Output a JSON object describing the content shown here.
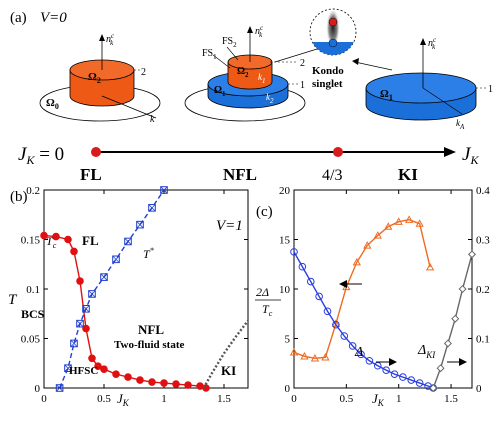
{
  "panel_a": {
    "label": "(a)",
    "v_label": "V=0",
    "nk_label": "n",
    "nk_sub": "k",
    "nk_sup": "c",
    "k_label": "k",
    "kA_label": "k",
    "kA_sub": "A",
    "omega2": "Ω",
    "omega2_sub": "2",
    "omega0": "Ω",
    "omega0_sub": "0",
    "omega1": "Ω",
    "omega1_sub": "1",
    "fs1": "FS",
    "fs1_sub": "1",
    "fs2": "FS",
    "fs2_sub": "2",
    "k1": "k",
    "k1_sub": "1",
    "k2": "k",
    "k2_sub": "2",
    "level1": "1",
    "level2": "2",
    "kondo": "Kondo",
    "singlet": "singlet",
    "jk_start": "J",
    "jk_start_sub": "K",
    "jk_start_eq": " = 0",
    "jk_end": "J",
    "jk_end_sub": "K",
    "phase_fl": "FL",
    "phase_nfl": "NFL",
    "phase_ki": "KI",
    "mid_tick": "4/3",
    "colors": {
      "orange": "#ee5a16",
      "blue": "#1b6fd8",
      "red_dot": "#d81b1b"
    }
  },
  "panel_b": {
    "label": "(b)",
    "v_label": "V=1",
    "region_fl": "FL",
    "region_bcs": "BCS",
    "region_nfl": "NFL",
    "region_twofluid": "Two-fluid state",
    "region_hfsc": "HFSC",
    "region_ki": "KI",
    "tc_label": "T",
    "tc_sub": "c",
    "tstar_label": "T",
    "tstar_sup": "*"
  },
  "panel_c": {
    "label": "(c)",
    "delta_label": "Δ",
    "delta_ki_label": "Δ",
    "delta_ki_sub": "KI",
    "ratio_num": "2Δ",
    "ratio_den": "T",
    "ratio_den_sub": "c"
  },
  "chart_data": [
    {
      "type": "line",
      "panel": "b",
      "xlabel": "J_K",
      "ylabel": "T",
      "xlim": [
        0,
        1.7
      ],
      "ylim": [
        0,
        0.2
      ],
      "xticks": [
        0,
        0.5,
        1,
        1.5
      ],
      "yticks": [
        0,
        0.05,
        0.1,
        0.15,
        0.2
      ],
      "series": [
        {
          "name": "T_c",
          "color": "#e01010",
          "marker": "circle",
          "x": [
            0,
            0.1,
            0.2,
            0.25,
            0.3,
            0.35,
            0.4,
            0.45,
            0.5,
            0.6,
            0.7,
            0.8,
            0.9,
            1.0,
            1.1,
            1.2,
            1.3,
            1.35
          ],
          "y": [
            0.154,
            0.153,
            0.15,
            0.138,
            0.108,
            0.06,
            0.03,
            0.022,
            0.019,
            0.014,
            0.011,
            0.008,
            0.006,
            0.005,
            0.004,
            0.003,
            0.002,
            0.0
          ]
        },
        {
          "name": "T*",
          "color": "#1f3fd0",
          "marker": "square-x",
          "dashed": true,
          "x": [
            0.13,
            0.2,
            0.25,
            0.3,
            0.35,
            0.4,
            0.5,
            0.6,
            0.7,
            0.8,
            0.9,
            1.0
          ],
          "y": [
            0.0,
            0.02,
            0.045,
            0.065,
            0.08,
            0.095,
            0.112,
            0.13,
            0.148,
            0.165,
            0.182,
            0.2
          ]
        },
        {
          "name": "KI boundary",
          "color": "#555555",
          "marker": "none",
          "dotted": true,
          "x": [
            1.33,
            1.4,
            1.5,
            1.6,
            1.7
          ],
          "y": [
            0.0,
            0.015,
            0.035,
            0.052,
            0.068
          ]
        }
      ]
    },
    {
      "type": "line",
      "panel": "c",
      "xlabel": "J_K",
      "xlim": [
        0,
        1.7
      ],
      "ylim_left": [
        0,
        20
      ],
      "ylim_right": [
        0,
        0.4
      ],
      "xticks": [
        0,
        0.5,
        1,
        1.5
      ],
      "yticks_left": [
        0,
        5,
        10,
        15,
        20
      ],
      "yticks_right": [
        0,
        0.1,
        0.2,
        0.3,
        0.4
      ],
      "series": [
        {
          "name": "2Δ/T_c",
          "axis": "left",
          "color": "#f06a20",
          "marker": "triangle",
          "x": [
            0,
            0.1,
            0.2,
            0.3,
            0.4,
            0.5,
            0.6,
            0.7,
            0.8,
            0.9,
            1.0,
            1.1,
            1.2,
            1.3
          ],
          "y": [
            3.6,
            3.2,
            3.0,
            3.1,
            6.5,
            10.2,
            12.7,
            14.4,
            15.4,
            16.3,
            16.8,
            17.0,
            16.6,
            12.2
          ]
        },
        {
          "name": "Δ",
          "axis": "right",
          "color": "#2a3fe0",
          "marker": "circle",
          "x": [
            0,
            0.08,
            0.16,
            0.24,
            0.32,
            0.4,
            0.48,
            0.56,
            0.64,
            0.72,
            0.8,
            0.88,
            0.96,
            1.04,
            1.12,
            1.2,
            1.28,
            1.33
          ],
          "y": [
            0.275,
            0.245,
            0.215,
            0.185,
            0.155,
            0.128,
            0.105,
            0.085,
            0.068,
            0.055,
            0.045,
            0.036,
            0.028,
            0.022,
            0.016,
            0.01,
            0.004,
            0.0
          ]
        },
        {
          "name": "Δ_KI",
          "axis": "right",
          "color": "#666666",
          "marker": "diamond",
          "x": [
            1.33,
            1.4,
            1.47,
            1.54,
            1.61,
            1.7
          ],
          "y": [
            0.0,
            0.04,
            0.09,
            0.14,
            0.2,
            0.27
          ]
        }
      ]
    }
  ]
}
